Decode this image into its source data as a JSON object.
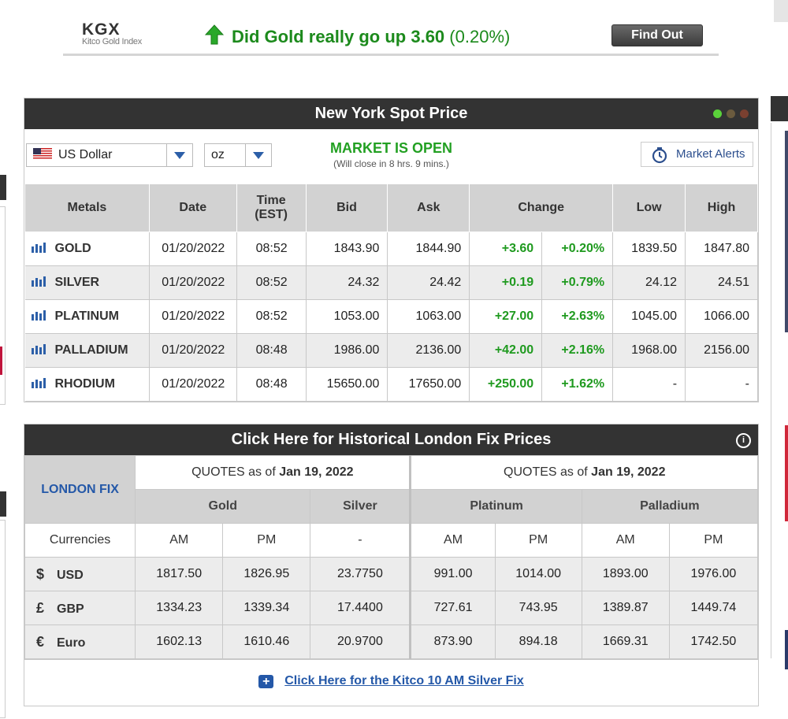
{
  "kgx": {
    "logo": "KGX",
    "logo_sub": "Kitco Gold Index",
    "question_prefix": "Did Gold really go up 3.60",
    "question_pct": "(0.20%)",
    "find_out": "Find Out"
  },
  "spot": {
    "title": "New York Spot Price",
    "currency": "US Dollar",
    "unit": "oz",
    "market_status": "MARKET IS OPEN",
    "close_note": "(Will close in 8 hrs. 9 mins.)",
    "alerts_label": "Market Alerts",
    "headers": {
      "metals": "Metals",
      "date": "Date",
      "time": "Time",
      "time_zone": "(EST)",
      "bid": "Bid",
      "ask": "Ask",
      "change": "Change",
      "low": "Low",
      "high": "High"
    },
    "rows": [
      {
        "metal": "GOLD",
        "date": "01/20/2022",
        "time": "08:52",
        "bid": "1843.90",
        "ask": "1844.90",
        "chg": "+3.60",
        "pct": "+0.20%",
        "low": "1839.50",
        "high": "1847.80"
      },
      {
        "metal": "SILVER",
        "date": "01/20/2022",
        "time": "08:52",
        "bid": "24.32",
        "ask": "24.42",
        "chg": "+0.19",
        "pct": "+0.79%",
        "low": "24.12",
        "high": "24.51"
      },
      {
        "metal": "PLATINUM",
        "date": "01/20/2022",
        "time": "08:52",
        "bid": "1053.00",
        "ask": "1063.00",
        "chg": "+27.00",
        "pct": "+2.63%",
        "low": "1045.00",
        "high": "1066.00"
      },
      {
        "metal": "PALLADIUM",
        "date": "01/20/2022",
        "time": "08:48",
        "bid": "1986.00",
        "ask": "2136.00",
        "chg": "+42.00",
        "pct": "+2.16%",
        "low": "1968.00",
        "high": "2156.00"
      },
      {
        "metal": "RHODIUM",
        "date": "01/20/2022",
        "time": "08:48",
        "bid": "15650.00",
        "ask": "17650.00",
        "chg": "+250.00",
        "pct": "+1.62%",
        "low": "-",
        "high": "-"
      }
    ]
  },
  "london": {
    "title": "Click Here for Historical London Fix Prices",
    "label": "LONDON FIX",
    "quote1_prefix": "QUOTES as of",
    "quote1_date": "Jan 19, 2022",
    "quote2_prefix": "QUOTES as of",
    "quote2_date": "Jan 19, 2022",
    "gold": "Gold",
    "silver": "Silver",
    "platinum": "Platinum",
    "palladium": "Palladium",
    "currencies": "Currencies",
    "am": "AM",
    "pm": "PM",
    "dash": "-",
    "rows": [
      {
        "sym": "$",
        "cur": "USD",
        "g_am": "1817.50",
        "g_pm": "1826.95",
        "s": "23.7750",
        "pt_am": "991.00",
        "pt_pm": "1014.00",
        "pd_am": "1893.00",
        "pd_pm": "1976.00"
      },
      {
        "sym": "£",
        "cur": "GBP",
        "g_am": "1334.23",
        "g_pm": "1339.34",
        "s": "17.4400",
        "pt_am": "727.61",
        "pt_pm": "743.95",
        "pd_am": "1389.87",
        "pd_pm": "1449.74"
      },
      {
        "sym": "€",
        "cur": "Euro",
        "g_am": "1602.13",
        "g_pm": "1610.46",
        "s": "20.9700",
        "pt_am": "873.90",
        "pt_pm": "894.18",
        "pd_am": "1669.31",
        "pd_pm": "1742.50"
      }
    ],
    "silver_fix_link": "Click Here for the Kitco 10 AM Silver Fix"
  },
  "colors": {
    "header_bg": "#333333",
    "accent_green": "#1f9a1f",
    "link_blue": "#2458a8",
    "dot_green": "#5ad23a",
    "dot_dark1": "#6b5b3e",
    "dot_dark2": "#7a4030"
  }
}
